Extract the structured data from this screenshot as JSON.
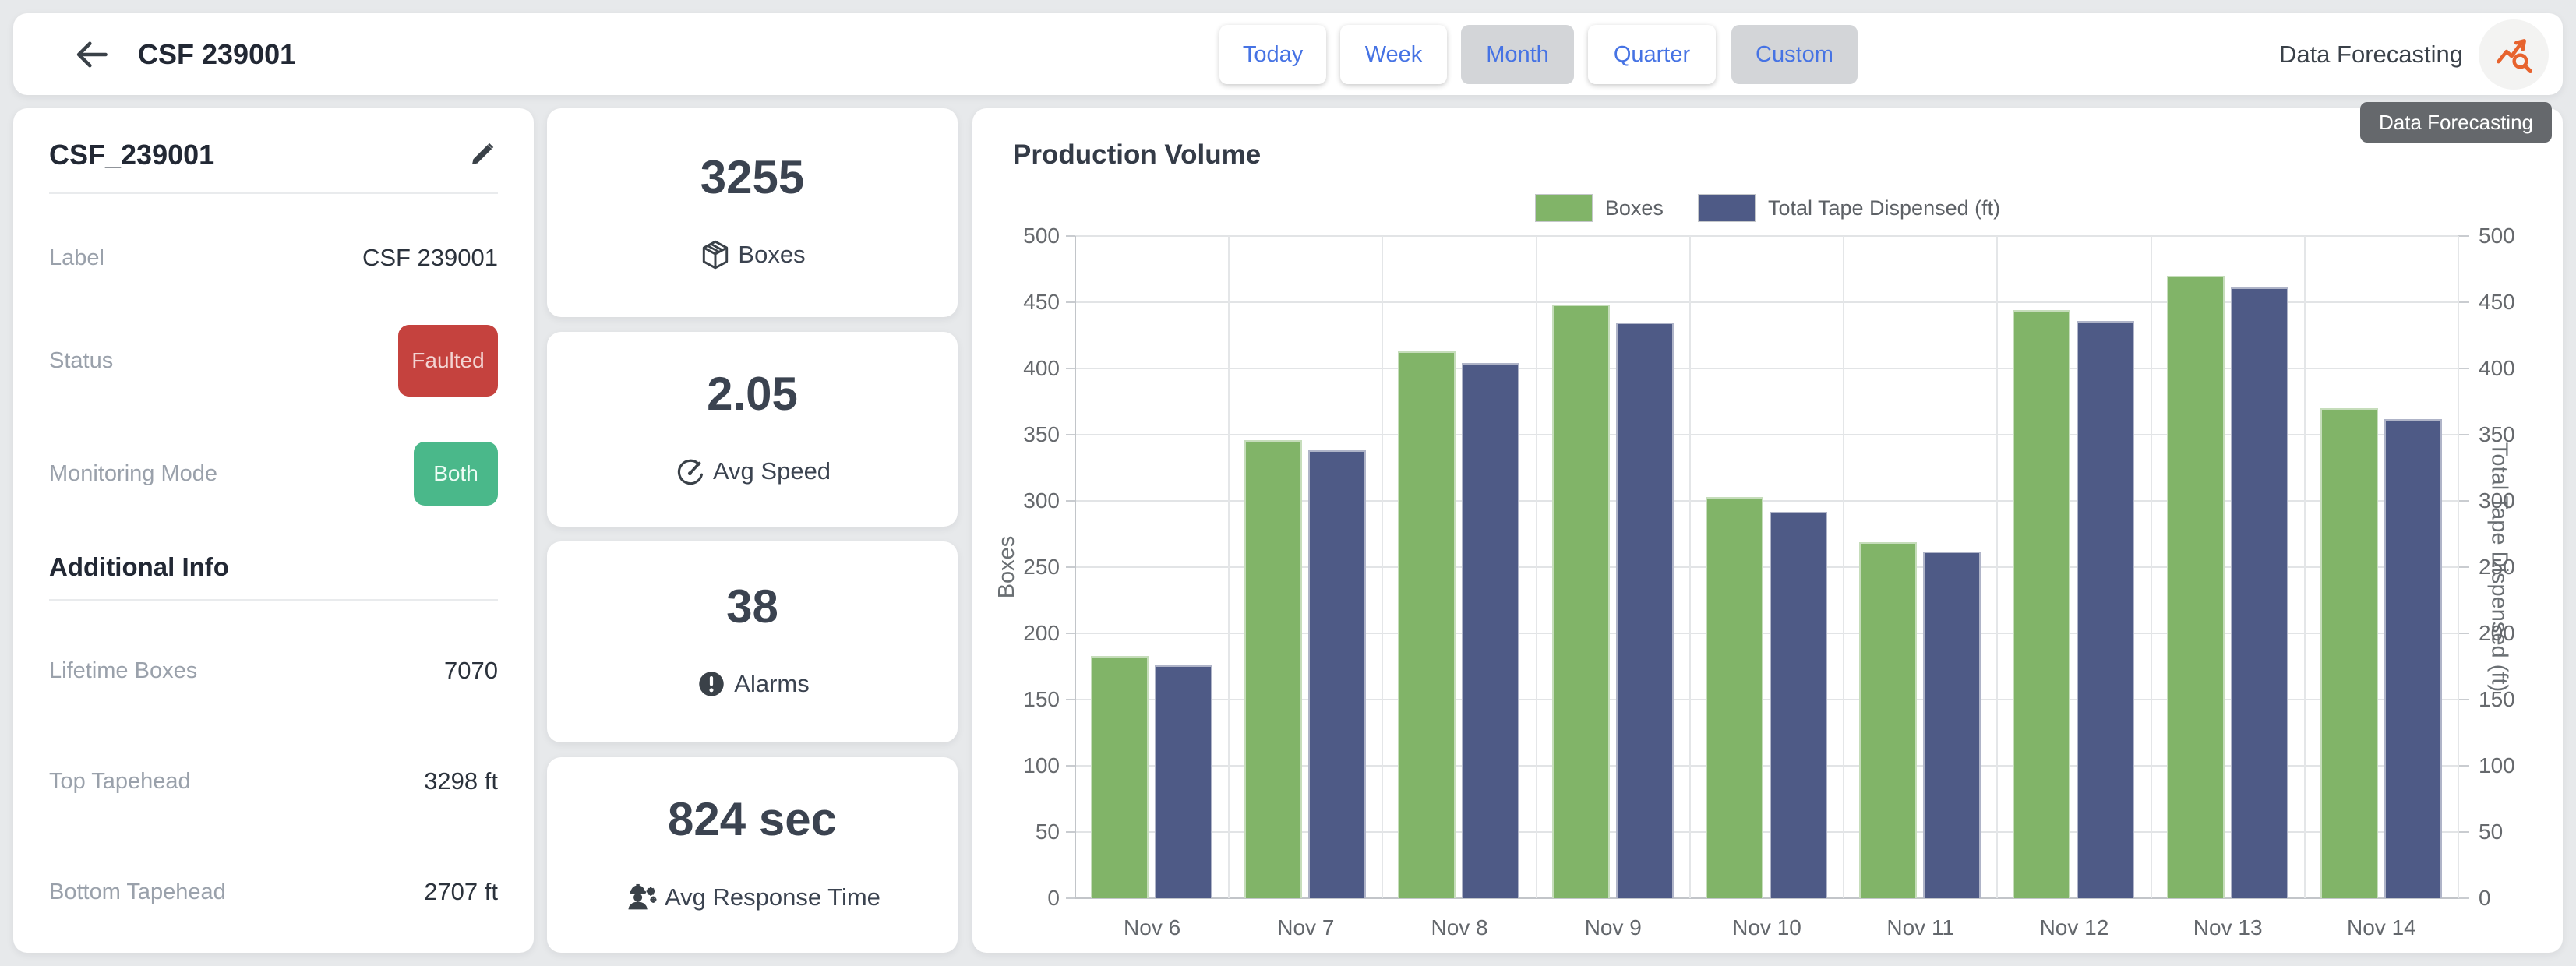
{
  "header": {
    "title": "CSF 239001",
    "range_buttons": [
      {
        "label": "Today",
        "pressed": false
      },
      {
        "label": "Week",
        "pressed": false
      },
      {
        "label": "Month",
        "pressed": true
      },
      {
        "label": "Quarter",
        "pressed": false
      },
      {
        "label": "Custom",
        "pressed": true
      }
    ],
    "forecasting_label": "Data Forecasting",
    "tooltip": "Data Forecasting"
  },
  "machine_panel": {
    "name": "CSF_239001",
    "rows": [
      {
        "label": "Label",
        "value": "CSF 239001"
      },
      {
        "label": "Status",
        "value": "Faulted"
      },
      {
        "label": "Monitoring Mode",
        "value": "Both"
      }
    ],
    "section_title": "Additional Info",
    "info_rows": [
      {
        "label": "Lifetime Boxes",
        "value": "7070"
      },
      {
        "label": "Top Tapehead",
        "value": "3298 ft"
      },
      {
        "label": "Bottom Tapehead",
        "value": "2707 ft"
      }
    ],
    "status_color": "#c5423e",
    "monitoring_color": "#4ab88a"
  },
  "stat_cards": [
    {
      "value": "3255",
      "label": "Boxes",
      "icon": "box-icon"
    },
    {
      "value": "2.05",
      "label": "Avg Speed",
      "icon": "speedometer-icon"
    },
    {
      "value": "38",
      "label": "Alarms",
      "icon": "alert-circle-icon"
    },
    {
      "value": "824 sec",
      "label": "Avg Response Time",
      "icon": "engineer-icon"
    }
  ],
  "chart_data": {
    "type": "bar",
    "title": "Production Volume",
    "categories": [
      "Nov 6",
      "Nov 7",
      "Nov 8",
      "Nov 9",
      "Nov 10",
      "Nov 11",
      "Nov 12",
      "Nov 13",
      "Nov 14"
    ],
    "series": [
      {
        "name": "Boxes",
        "color": "#81b468",
        "values": [
          183,
          346,
          413,
          448,
          303,
          269,
          444,
          470,
          370
        ]
      },
      {
        "name": "Total Tape Dispensed (ft)",
        "color": "#4e5a86",
        "values": [
          176,
          338,
          404,
          435,
          292,
          262,
          436,
          461,
          362
        ]
      }
    ],
    "xlabel": "",
    "ylabel_left": "Boxes",
    "ylabel_right": "Total Tape Dispensed (ft)",
    "ylim": [
      0,
      500
    ],
    "ytick_step": 50,
    "grid": true,
    "legend_position": "top-center"
  }
}
